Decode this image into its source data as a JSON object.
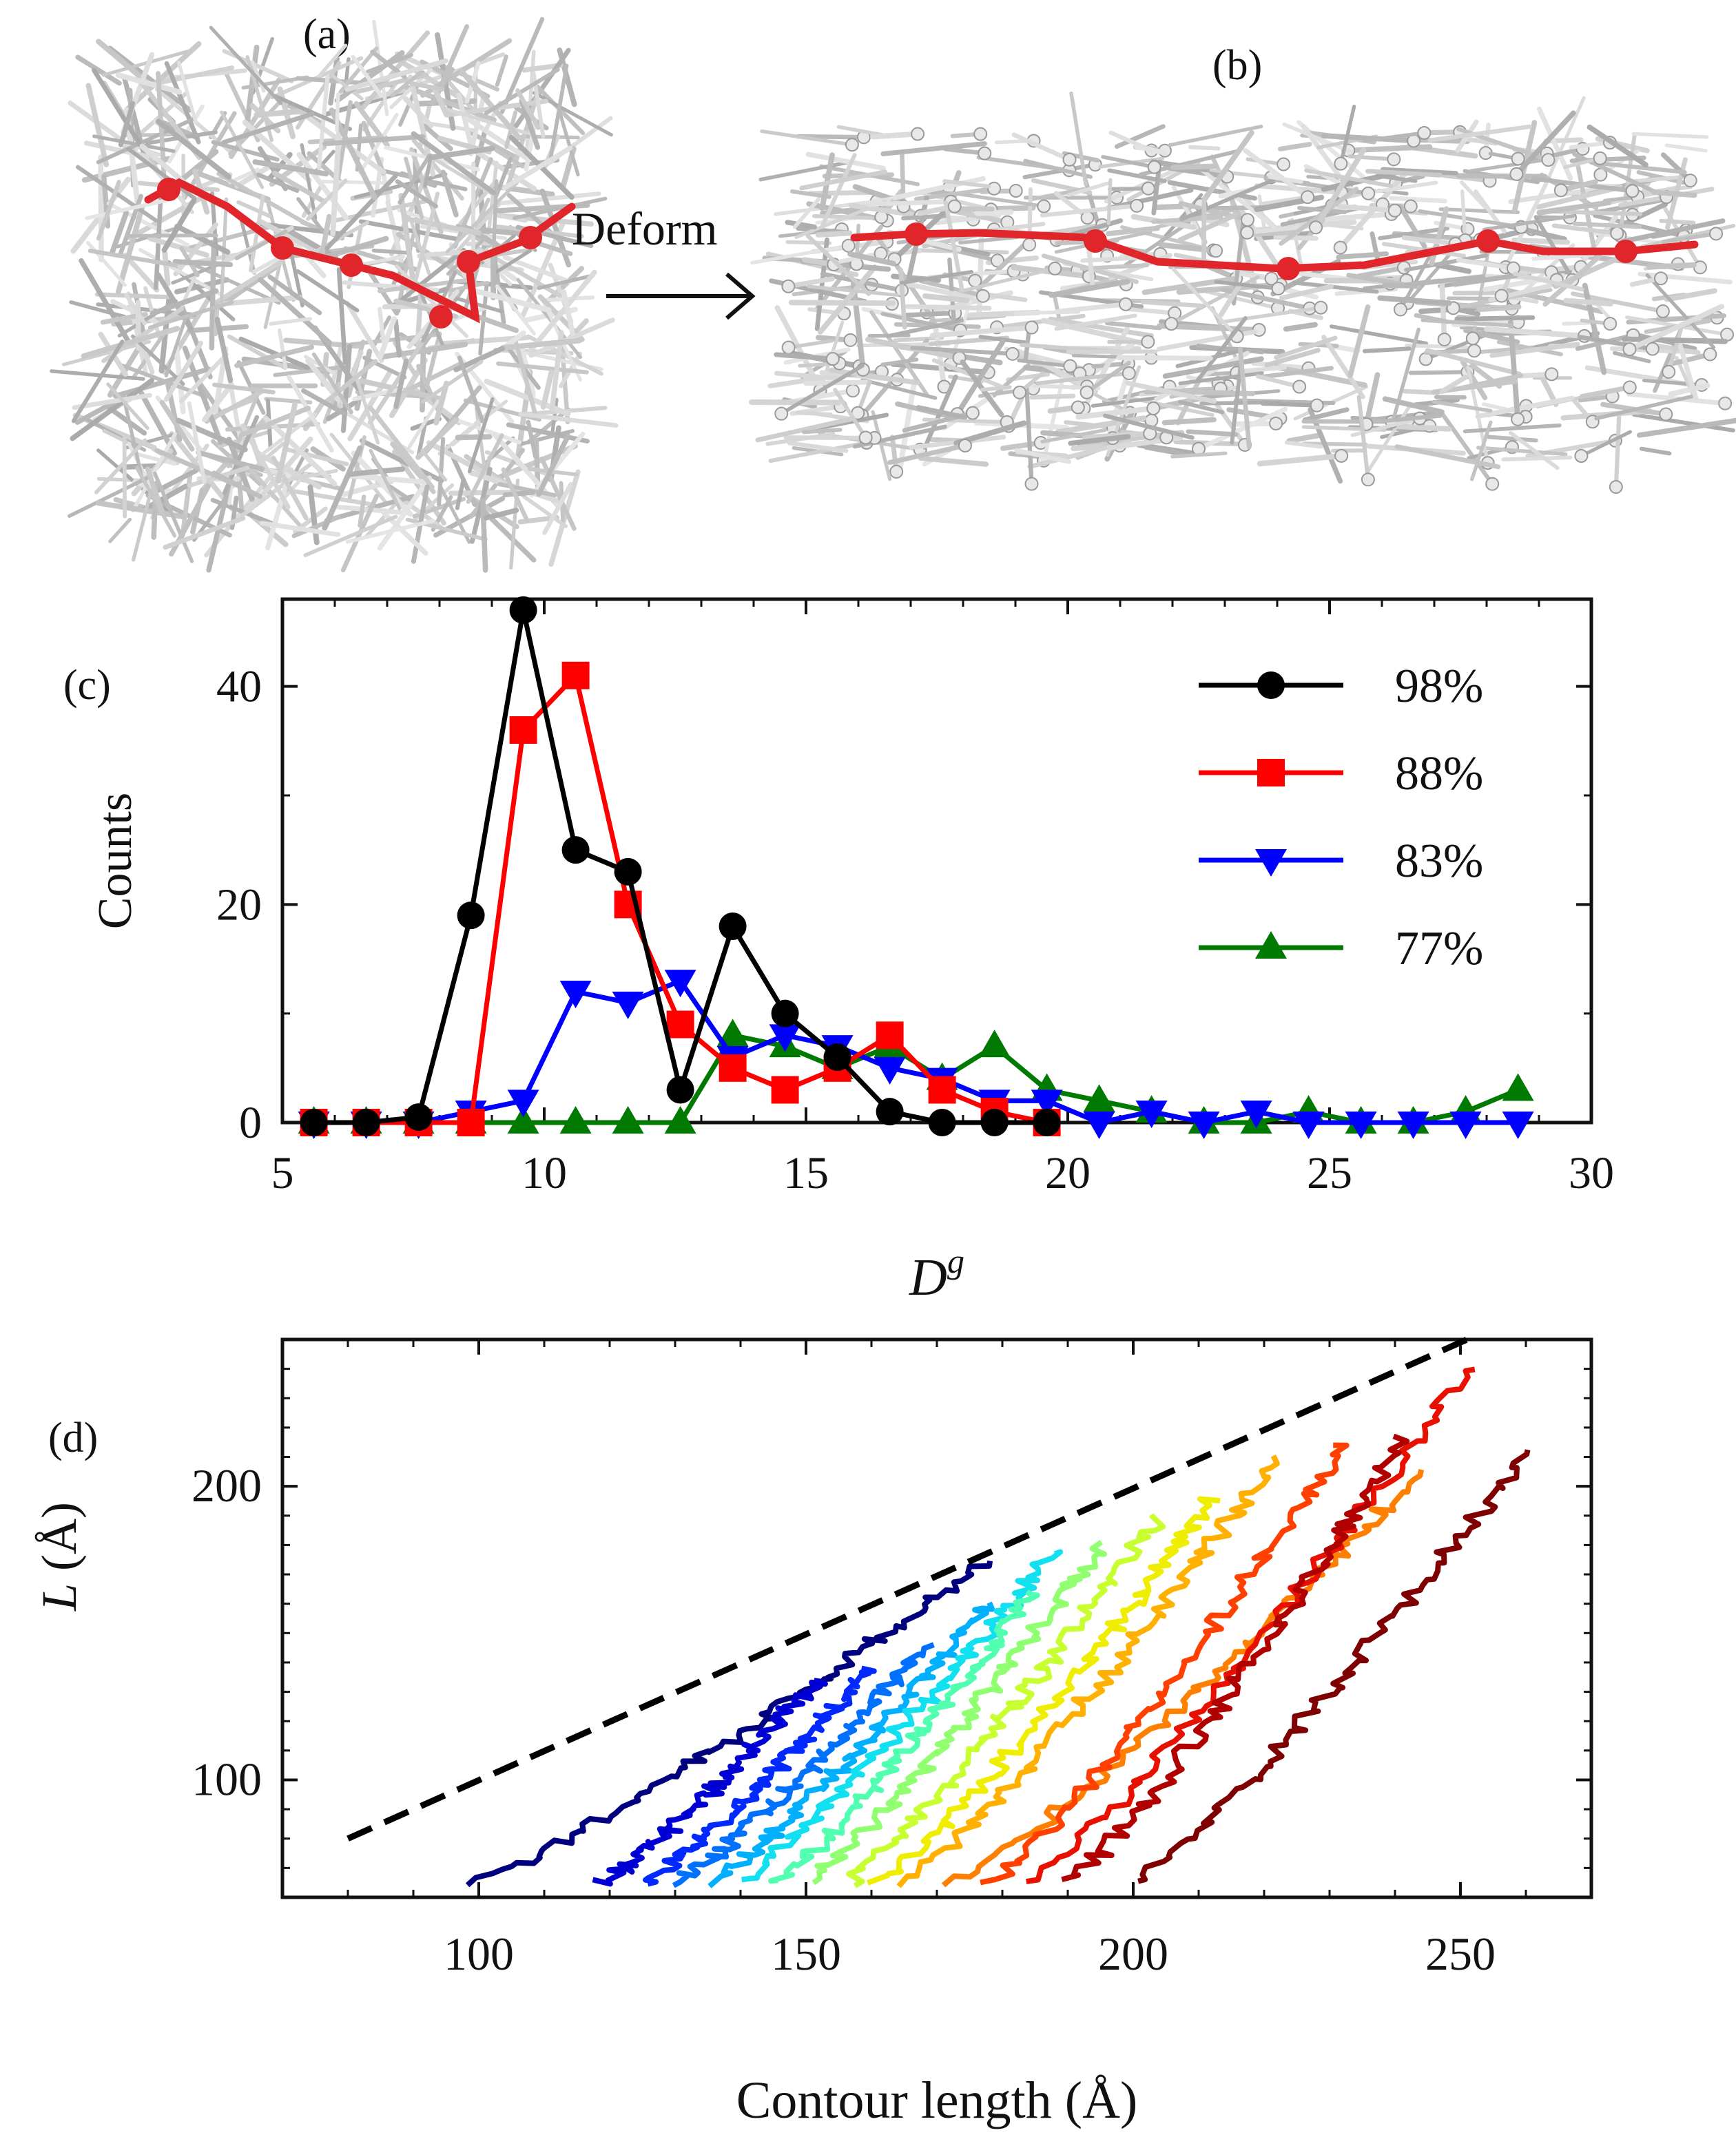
{
  "panel_labels": {
    "a": "(a)",
    "b": "(b)",
    "c": "(c)",
    "d": "(d)"
  },
  "deform_label": "Deform",
  "colors": {
    "network_rod": "#c9c9c9",
    "network_node": "#e8e8e8",
    "highlight": "#e0262b"
  },
  "chart_data": [
    {
      "type": "line",
      "panel": "c",
      "xlabel": "D",
      "xlabel_superscript": "g",
      "ylabel": "Counts",
      "xlim": [
        5,
        30
      ],
      "ylim": [
        0,
        48
      ],
      "xticks": [
        5,
        10,
        15,
        20,
        25,
        30
      ],
      "yticks": [
        0,
        20,
        40
      ],
      "legend_position": "top-right",
      "series": [
        {
          "name": "98%",
          "color": "#000000",
          "marker": "circle",
          "points": [
            [
              5.6,
              0
            ],
            [
              6.6,
              0
            ],
            [
              7.6,
              0.5
            ],
            [
              8.6,
              19
            ],
            [
              9.6,
              47
            ],
            [
              10.6,
              25
            ],
            [
              11.6,
              23
            ],
            [
              12.6,
              3
            ],
            [
              13.6,
              18
            ],
            [
              14.6,
              10
            ],
            [
              15.6,
              6
            ],
            [
              16.6,
              1
            ],
            [
              17.6,
              0
            ],
            [
              18.6,
              0
            ],
            [
              19.6,
              0
            ]
          ]
        },
        {
          "name": "88%",
          "color": "#ff0000",
          "marker": "square",
          "points": [
            [
              5.6,
              0
            ],
            [
              6.6,
              0
            ],
            [
              7.6,
              0
            ],
            [
              8.6,
              0
            ],
            [
              9.6,
              36
            ],
            [
              10.6,
              41
            ],
            [
              11.6,
              20
            ],
            [
              12.6,
              9
            ],
            [
              13.6,
              5
            ],
            [
              14.6,
              3
            ],
            [
              15.6,
              5
            ],
            [
              16.6,
              8
            ],
            [
              17.6,
              3
            ],
            [
              18.6,
              1
            ],
            [
              19.6,
              0
            ]
          ]
        },
        {
          "name": "83%",
          "color": "#0000ff",
          "marker": "triangle-down",
          "points": [
            [
              5.6,
              0
            ],
            [
              6.6,
              0
            ],
            [
              7.6,
              0
            ],
            [
              8.6,
              1
            ],
            [
              9.6,
              2
            ],
            [
              10.6,
              12
            ],
            [
              11.6,
              11
            ],
            [
              12.6,
              13
            ],
            [
              13.6,
              6
            ],
            [
              14.6,
              8
            ],
            [
              15.6,
              7
            ],
            [
              16.6,
              5
            ],
            [
              17.6,
              4
            ],
            [
              18.6,
              2
            ],
            [
              19.6,
              2
            ],
            [
              20.6,
              0
            ],
            [
              21.6,
              1
            ],
            [
              22.6,
              0
            ],
            [
              23.6,
              1
            ],
            [
              24.6,
              0
            ],
            [
              25.6,
              0
            ],
            [
              26.6,
              0
            ],
            [
              27.6,
              0
            ],
            [
              28.6,
              0
            ]
          ]
        },
        {
          "name": "77%",
          "color": "#007a00",
          "marker": "triangle-up",
          "points": [
            [
              5.6,
              0
            ],
            [
              6.6,
              0
            ],
            [
              7.6,
              0
            ],
            [
              8.6,
              0
            ],
            [
              9.6,
              0
            ],
            [
              10.6,
              0
            ],
            [
              11.6,
              0
            ],
            [
              12.6,
              0
            ],
            [
              13.6,
              8
            ],
            [
              14.6,
              7
            ],
            [
              15.6,
              5
            ],
            [
              16.6,
              7
            ],
            [
              17.6,
              4
            ],
            [
              18.6,
              7
            ],
            [
              19.6,
              3
            ],
            [
              20.6,
              2
            ],
            [
              21.6,
              1
            ],
            [
              22.6,
              0
            ],
            [
              23.6,
              0
            ],
            [
              24.6,
              1
            ],
            [
              25.6,
              0
            ],
            [
              26.6,
              0
            ],
            [
              27.6,
              1
            ],
            [
              28.6,
              3
            ]
          ]
        }
      ]
    },
    {
      "type": "line",
      "panel": "d",
      "xlabel": "Contour length (Å)",
      "ylabel": "L (Å)",
      "ylabel_italic_part": "L",
      "ylabel_rest": " (Å)",
      "xlim": [
        70,
        270
      ],
      "ylim": [
        60,
        250
      ],
      "xticks": [
        100,
        150,
        200,
        250
      ],
      "yticks": [
        100,
        200
      ],
      "reference_line": {
        "style": "dashed",
        "color": "#000000",
        "points": [
          [
            80,
            80
          ],
          [
            251,
            250
          ]
        ]
      },
      "curves": [
        {
          "start": [
            99,
            65
          ],
          "end": [
            178,
            175
          ],
          "color": "#00007f"
        },
        {
          "start": [
            119,
            65
          ],
          "end": [
            152,
            135
          ],
          "color": "#0000d5"
        },
        {
          "start": [
            125,
            65
          ],
          "end": [
            160,
            138
          ],
          "color": "#0028ff"
        },
        {
          "start": [
            130,
            65
          ],
          "end": [
            168,
            145
          ],
          "color": "#0070ff"
        },
        {
          "start": [
            135,
            65
          ],
          "end": [
            178,
            160
          ],
          "color": "#00b0ff"
        },
        {
          "start": [
            139,
            65
          ],
          "end": [
            188,
            178
          ],
          "color": "#10e0f0"
        },
        {
          "start": [
            145,
            65
          ],
          "end": [
            185,
            165
          ],
          "color": "#50ffb0"
        },
        {
          "start": [
            150,
            65
          ],
          "end": [
            195,
            180
          ],
          "color": "#90ff70"
        },
        {
          "start": [
            156,
            65
          ],
          "end": [
            204,
            190
          ],
          "color": "#c8ff30"
        },
        {
          "start": [
            161,
            65
          ],
          "end": [
            212,
            196
          ],
          "color": "#f0ee00"
        },
        {
          "start": [
            165,
            65
          ],
          "end": [
            222,
            210
          ],
          "color": "#ffb000"
        },
        {
          "start": [
            172,
            65
          ],
          "end": [
            244,
            205
          ],
          "color": "#ff8000"
        },
        {
          "start": [
            178,
            65
          ],
          "end": [
            232,
            215
          ],
          "color": "#ff4000"
        },
        {
          "start": [
            184,
            65
          ],
          "end": [
            251,
            240
          ],
          "color": "#e81000"
        },
        {
          "start": [
            190,
            65
          ],
          "end": [
            241,
            216
          ],
          "color": "#b00000"
        },
        {
          "start": [
            200,
            65
          ],
          "end": [
            260,
            212
          ],
          "color": "#7f0000"
        }
      ]
    }
  ]
}
